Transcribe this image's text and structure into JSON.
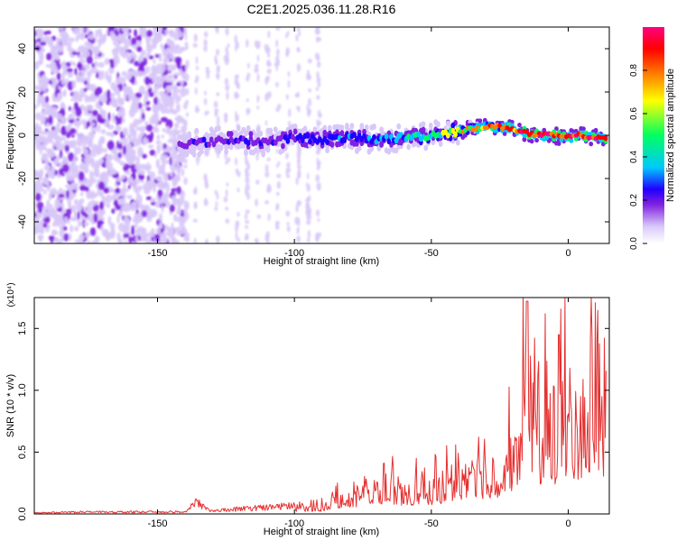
{
  "chart_data": [
    {
      "type": "heatmap",
      "title": "C2E1.2025.036.11.28.R16",
      "xlabel": "Height of straight line (km)",
      "ylabel": "Frequency (Hz)",
      "xlim": [
        -195,
        15
      ],
      "ylim": [
        -50,
        50
      ],
      "xticks": [
        -150,
        -100,
        -50,
        0
      ],
      "yticks": [
        -40,
        -20,
        0,
        20,
        40
      ],
      "colorbar": {
        "label": "Normalized spectral amplitude",
        "range": [
          0,
          1
        ],
        "ticks": [
          0.0,
          0.2,
          0.4,
          0.6,
          0.8
        ],
        "colors": [
          "#ffffff",
          "#d8c8f8",
          "#8020e0",
          "#2000ff",
          "#00c8ff",
          "#00ff60",
          "#ffff00",
          "#ff8000",
          "#ff0000",
          "#ff0080"
        ]
      },
      "ridge": {
        "name": "frequency track",
        "x": [
          -142,
          -130,
          -120,
          -110,
          -100,
          -90,
          -80,
          -70,
          -60,
          -50,
          -45,
          -40,
          -35,
          -30,
          -25,
          -20,
          -15,
          -10,
          -5,
          0,
          5,
          10,
          14
        ],
        "freq": [
          -4,
          -3,
          -2,
          -3,
          -1,
          -2,
          -1,
          -2,
          -1,
          0,
          1,
          2,
          3,
          4,
          4,
          3,
          1,
          0,
          0,
          -1,
          0,
          -1,
          -1
        ],
        "amplitude": [
          0.25,
          0.28,
          0.3,
          0.3,
          0.32,
          0.35,
          0.38,
          0.4,
          0.45,
          0.55,
          0.65,
          0.72,
          0.78,
          0.82,
          0.88,
          0.92,
          0.95,
          0.97,
          0.96,
          0.98,
          1.0,
          0.98,
          0.96
        ]
      },
      "noise_region": {
        "x_from": -195,
        "x_to": -140,
        "amplitude": 0.15
      },
      "sparse_noise_region": {
        "x_from": -140,
        "x_to": -88,
        "amplitude": 0.08
      }
    },
    {
      "type": "line",
      "xlabel": "Height of straight line (km)",
      "ylabel": "SNR (10 * v/v)",
      "scale_note": "(x10⁴)",
      "xlim": [
        -195,
        15
      ],
      "ylim": [
        0,
        1.75
      ],
      "xticks": [
        -150,
        -100,
        -50,
        0
      ],
      "yticks": [
        0.0,
        0.5,
        1.0,
        1.5
      ],
      "color": "#e53030",
      "series": [
        {
          "x": [
            -195,
            -180,
            -160,
            -140,
            -136,
            -130,
            -120,
            -110,
            -100,
            -90,
            -85,
            -80,
            -75,
            -70,
            -65,
            -60,
            -55,
            -50,
            -45,
            -40,
            -35,
            -30,
            -25,
            -20,
            -17,
            -15,
            -12,
            -10,
            -8,
            -5,
            -3,
            0,
            5,
            10,
            14
          ],
          "y": [
            0.01,
            0.02,
            0.02,
            0.02,
            0.12,
            0.03,
            0.05,
            0.07,
            0.08,
            0.08,
            0.2,
            0.15,
            0.3,
            0.35,
            0.28,
            0.25,
            0.3,
            0.28,
            0.35,
            0.45,
            0.55,
            0.45,
            0.55,
            0.7,
            1.0,
            1.72,
            0.95,
            0.9,
            1.35,
            0.85,
            1.45,
            0.9,
            1.15,
            1.4,
            1.1
          ]
        }
      ]
    }
  ]
}
